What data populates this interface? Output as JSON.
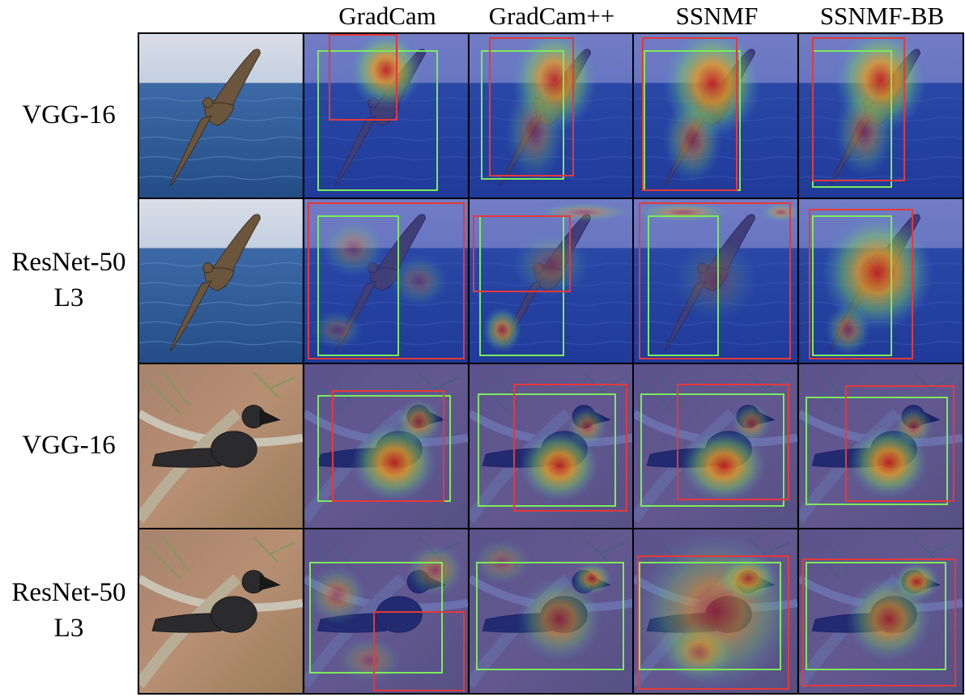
{
  "columns": [
    "GradCam",
    "GradCam++",
    "SSNMF",
    "SSNMF-BB"
  ],
  "rows": [
    {
      "label_lines": [
        "VGG-16"
      ],
      "scene": "sea"
    },
    {
      "label_lines": [
        "ResNet-50",
        "L3"
      ],
      "scene": "sea"
    },
    {
      "label_lines": [
        "VGG-16"
      ],
      "scene": "branch"
    },
    {
      "label_lines": [
        "ResNet-50",
        "L3"
      ],
      "scene": "branch"
    }
  ],
  "colors": {
    "ground_truth_box": "#7CEB5A",
    "predicted_box": "#E4393A",
    "heatmap_low": "#1E2BA8",
    "heatmap_high": "#C81E1E"
  }
}
